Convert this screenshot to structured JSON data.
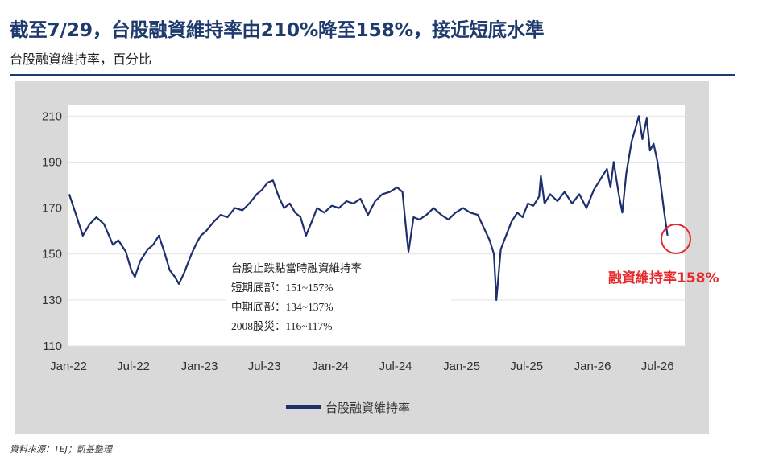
{
  "header": {
    "title": "截至7/29，台股融資維持率由210%降至158%，接近短底水準",
    "subtitle": "台股融資維持率，百分比"
  },
  "source": "資料來源：TEJ；凱基整理",
  "colors": {
    "series": "#1f2f6e",
    "accent": "#e8262b",
    "panel": "#d9d9d9",
    "plot": "#ffffff"
  },
  "chart_data": {
    "type": "line",
    "title": "截至7/29，台股融資維持率由210%降至158%，接近短底水準",
    "subtitle": "台股融資維持率，百分比",
    "ylim": [
      110,
      215
    ],
    "yticks": [
      210,
      190,
      170,
      150,
      130,
      110
    ],
    "xlim": [
      "2022-01-01",
      "2026-09-15"
    ],
    "xticks": [
      "Jan-22",
      "Jul-22",
      "Jan-23",
      "Jul-23",
      "Jan-24",
      "Jul-24",
      "Jan-25",
      "Jul-25",
      "Jan-26",
      "Jul-26"
    ],
    "grid": true,
    "legend_position": "bottom",
    "series": [
      {
        "name": "台股融資維持率",
        "color": "#1f2f6e",
        "points": [
          [
            "2022-01-03",
            176
          ],
          [
            "2022-01-20",
            168
          ],
          [
            "2022-02-10",
            158
          ],
          [
            "2022-03-01",
            163
          ],
          [
            "2022-03-20",
            166
          ],
          [
            "2022-04-10",
            163
          ],
          [
            "2022-05-05",
            154
          ],
          [
            "2022-05-20",
            156
          ],
          [
            "2022-06-10",
            151
          ],
          [
            "2022-06-25",
            143
          ],
          [
            "2022-07-05",
            140
          ],
          [
            "2022-07-20",
            147
          ],
          [
            "2022-08-10",
            152
          ],
          [
            "2022-08-25",
            154
          ],
          [
            "2022-09-10",
            158
          ],
          [
            "2022-09-25",
            151
          ],
          [
            "2022-10-10",
            143
          ],
          [
            "2022-10-25",
            140
          ],
          [
            "2022-11-05",
            137
          ],
          [
            "2022-11-20",
            142
          ],
          [
            "2022-12-10",
            150
          ],
          [
            "2022-12-25",
            155
          ],
          [
            "2023-01-05",
            158
          ],
          [
            "2023-01-20",
            160
          ],
          [
            "2023-02-10",
            164
          ],
          [
            "2023-03-01",
            167
          ],
          [
            "2023-03-20",
            166
          ],
          [
            "2023-04-10",
            170
          ],
          [
            "2023-05-01",
            169
          ],
          [
            "2023-05-20",
            172
          ],
          [
            "2023-06-10",
            176
          ],
          [
            "2023-06-25",
            178
          ],
          [
            "2023-07-10",
            181
          ],
          [
            "2023-07-25",
            182
          ],
          [
            "2023-08-10",
            175
          ],
          [
            "2023-08-25",
            170
          ],
          [
            "2023-09-10",
            172
          ],
          [
            "2023-09-25",
            168
          ],
          [
            "2023-10-10",
            166
          ],
          [
            "2023-10-25",
            158
          ],
          [
            "2023-11-10",
            164
          ],
          [
            "2023-11-25",
            170
          ],
          [
            "2023-12-15",
            168
          ],
          [
            "2024-01-05",
            171
          ],
          [
            "2024-01-25",
            170
          ],
          [
            "2024-02-15",
            173
          ],
          [
            "2024-03-05",
            172
          ],
          [
            "2024-03-25",
            174
          ],
          [
            "2024-04-15",
            167
          ],
          [
            "2024-05-05",
            173
          ],
          [
            "2024-05-25",
            176
          ],
          [
            "2024-06-15",
            177
          ],
          [
            "2024-07-05",
            179
          ],
          [
            "2024-07-20",
            177
          ],
          [
            "2024-08-01",
            158
          ],
          [
            "2024-08-06",
            151
          ],
          [
            "2024-08-20",
            166
          ],
          [
            "2024-09-05",
            165
          ],
          [
            "2024-09-25",
            167
          ],
          [
            "2024-10-15",
            170
          ],
          [
            "2024-11-05",
            167
          ],
          [
            "2024-11-25",
            165
          ],
          [
            "2024-12-15",
            168
          ],
          [
            "2025-01-05",
            170
          ],
          [
            "2025-01-25",
            168
          ],
          [
            "2025-02-15",
            167
          ],
          [
            "2025-03-05",
            161
          ],
          [
            "2025-03-20",
            156
          ],
          [
            "2025-04-01",
            150
          ],
          [
            "2025-04-08",
            130
          ],
          [
            "2025-04-20",
            152
          ],
          [
            "2025-05-05",
            158
          ],
          [
            "2025-05-20",
            164
          ],
          [
            "2025-06-05",
            168
          ],
          [
            "2025-06-20",
            166
          ],
          [
            "2025-07-05",
            172
          ],
          [
            "2025-07-20",
            171
          ],
          [
            "2025-08-05",
            175
          ],
          [
            "2025-08-10",
            184
          ],
          [
            "2025-08-20",
            172
          ],
          [
            "2025-09-05",
            176
          ],
          [
            "2025-09-25",
            173
          ],
          [
            "2025-10-15",
            177
          ],
          [
            "2025-11-05",
            172
          ],
          [
            "2025-11-25",
            176
          ],
          [
            "2025-12-15",
            170
          ],
          [
            "2026-01-05",
            178
          ],
          [
            "2026-01-25",
            183
          ],
          [
            "2026-02-10",
            187
          ],
          [
            "2026-02-20",
            179
          ],
          [
            "2026-03-01",
            190
          ],
          [
            "2026-03-15",
            176
          ],
          [
            "2026-03-25",
            168
          ],
          [
            "2026-04-05",
            185
          ],
          [
            "2026-04-20",
            199
          ],
          [
            "2026-05-01",
            205
          ],
          [
            "2026-05-10",
            210
          ],
          [
            "2026-05-20",
            200
          ],
          [
            "2026-06-01",
            209
          ],
          [
            "2026-06-10",
            195
          ],
          [
            "2026-06-20",
            198
          ],
          [
            "2026-07-01",
            190
          ],
          [
            "2026-07-10",
            180
          ],
          [
            "2026-07-20",
            168
          ],
          [
            "2026-07-29",
            158
          ]
        ]
      }
    ],
    "annotations": {
      "box_title": "台股止跌點當時融資維持率",
      "lines": [
        "短期底部：151~157%",
        "中期底部：134~137%",
        "2008股災：116~117%"
      ],
      "callout": "融資維持率158%"
    }
  }
}
